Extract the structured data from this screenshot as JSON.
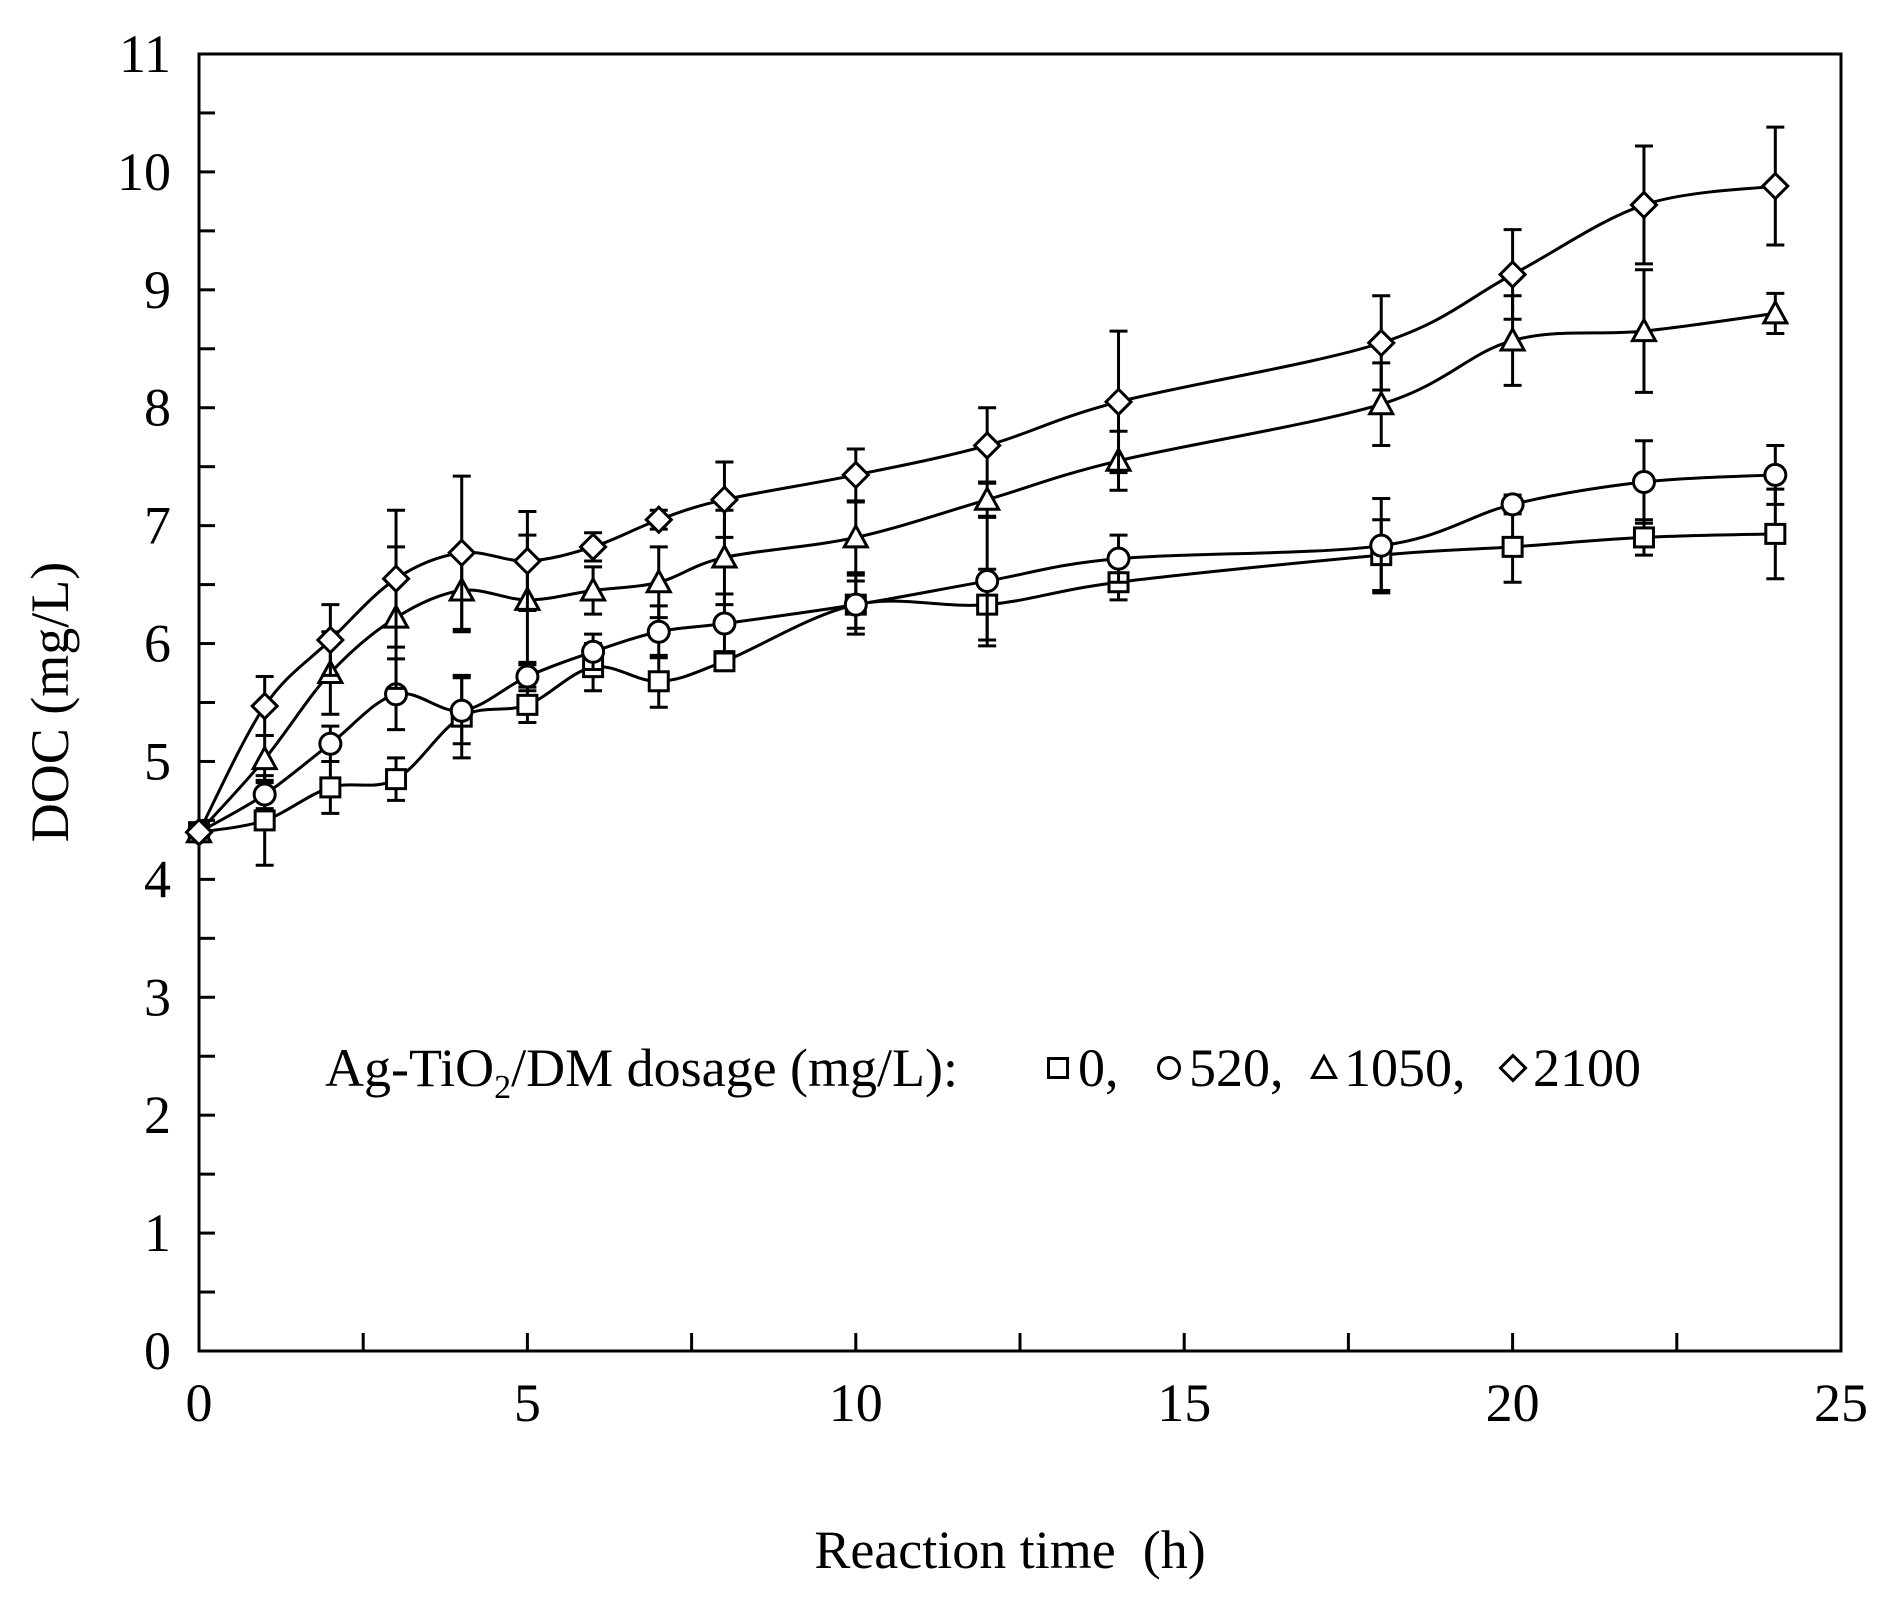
{
  "chart_data": {
    "type": "line",
    "title": "",
    "xlabel": "Reaction time  (h)",
    "ylabel": "DOC (mg/L)",
    "xlim": [
      0,
      25
    ],
    "ylim": [
      0,
      11
    ],
    "x_ticks": [
      "0",
      "5",
      "10",
      "15",
      "20",
      "25"
    ],
    "y_ticks": [
      "0",
      "1",
      "2",
      "3",
      "4",
      "5",
      "6",
      "7",
      "8",
      "9",
      "10",
      "11"
    ],
    "x": [
      0,
      1,
      2,
      3,
      4,
      5,
      6,
      7,
      8,
      10,
      12,
      14,
      18,
      20,
      22,
      24
    ],
    "grid": false,
    "legend": {
      "title_pre": "Ag-TiO",
      "title_sub": "2",
      "title_post": "/DM dosage (mg/L):",
      "placement": "middle-center"
    },
    "series": [
      {
        "name": "0",
        "legend_label": "0,",
        "marker": "square",
        "values": [
          4.4,
          4.5,
          4.78,
          4.85,
          5.38,
          5.48,
          5.8,
          5.68,
          5.85,
          6.33,
          6.33,
          6.52,
          6.75,
          6.82,
          6.9,
          6.93
        ],
        "errors": [
          0.05,
          0.38,
          0.22,
          0.18,
          0.35,
          0.15,
          0.2,
          0.22,
          0.08,
          0.2,
          0.3,
          0.15,
          0.3,
          0.3,
          0.15,
          0.38
        ]
      },
      {
        "name": "520",
        "legend_label": "520,",
        "marker": "circle",
        "values": [
          4.4,
          4.72,
          5.15,
          5.57,
          5.43,
          5.72,
          5.93,
          6.1,
          6.17,
          6.33,
          6.53,
          6.72,
          6.83,
          7.18,
          7.37,
          7.43
        ],
        "errors": [
          0.05,
          0.12,
          0.15,
          0.3,
          0.28,
          0.12,
          0.15,
          0.22,
          0.25,
          0.25,
          0.55,
          0.2,
          0.4,
          0.08,
          0.35,
          0.25
        ]
      },
      {
        "name": "1050",
        "legend_label": "1050,",
        "marker": "triangle",
        "values": [
          4.4,
          5.02,
          5.75,
          6.22,
          6.45,
          6.37,
          6.45,
          6.52,
          6.73,
          6.9,
          7.22,
          7.55,
          8.03,
          8.57,
          8.65,
          8.8
        ],
        "errors": [
          0.05,
          0.2,
          0.35,
          0.6,
          0.35,
          0.55,
          0.2,
          0.3,
          0.4,
          0.3,
          0.15,
          0.25,
          0.35,
          0.38,
          0.52,
          0.17
        ]
      },
      {
        "name": "2100",
        "legend_label": "2100",
        "marker": "diamond",
        "values": [
          4.4,
          5.47,
          6.03,
          6.55,
          6.77,
          6.7,
          6.82,
          7.05,
          7.22,
          7.43,
          7.68,
          8.05,
          8.55,
          9.13,
          9.72,
          9.88
        ],
        "errors": [
          0.05,
          0.25,
          0.3,
          0.58,
          0.65,
          0.42,
          0.12,
          0.08,
          0.32,
          0.22,
          0.32,
          0.6,
          0.4,
          0.38,
          0.5,
          0.5
        ]
      }
    ]
  }
}
